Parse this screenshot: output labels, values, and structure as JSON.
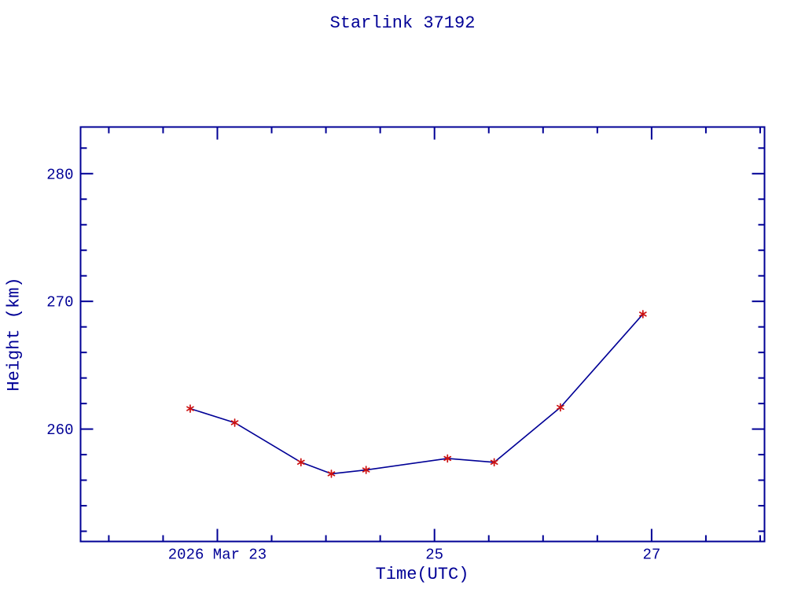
{
  "chart": {
    "title": "Starlink 37192",
    "xlabel": "Time(UTC)",
    "ylabel": "Height (km)"
  },
  "chart_data": {
    "type": "line",
    "title": "Starlink 37192",
    "xlabel": "Time(UTC)",
    "ylabel": "Height (km)",
    "x": [
      22.75,
      23.16,
      23.77,
      24.05,
      24.37,
      25.12,
      25.55,
      26.16,
      26.92
    ],
    "y": [
      261.6,
      260.5,
      257.4,
      256.5,
      256.8,
      257.7,
      257.4,
      261.7,
      269.0
    ],
    "xlim": [
      21.74,
      28.04
    ],
    "ylim": [
      251.2,
      283.65
    ],
    "x_major_ticks": [
      {
        "value": 23,
        "label": "2026 Mar 23"
      },
      {
        "value": 25,
        "label": "25"
      },
      {
        "value": 27,
        "label": "27"
      }
    ],
    "x_minor_step": 0.5,
    "y_major_ticks": [
      {
        "value": 260,
        "label": "260"
      },
      {
        "value": 270,
        "label": "270"
      },
      {
        "value": 280,
        "label": "280"
      }
    ],
    "y_minor_step": 2,
    "grid": false,
    "legend": null,
    "marker": "asterisk",
    "colors": {
      "axis": "#000096",
      "text": "#000096",
      "line": "#000096",
      "marker": "#CC1111",
      "background": "#ffffff"
    }
  }
}
